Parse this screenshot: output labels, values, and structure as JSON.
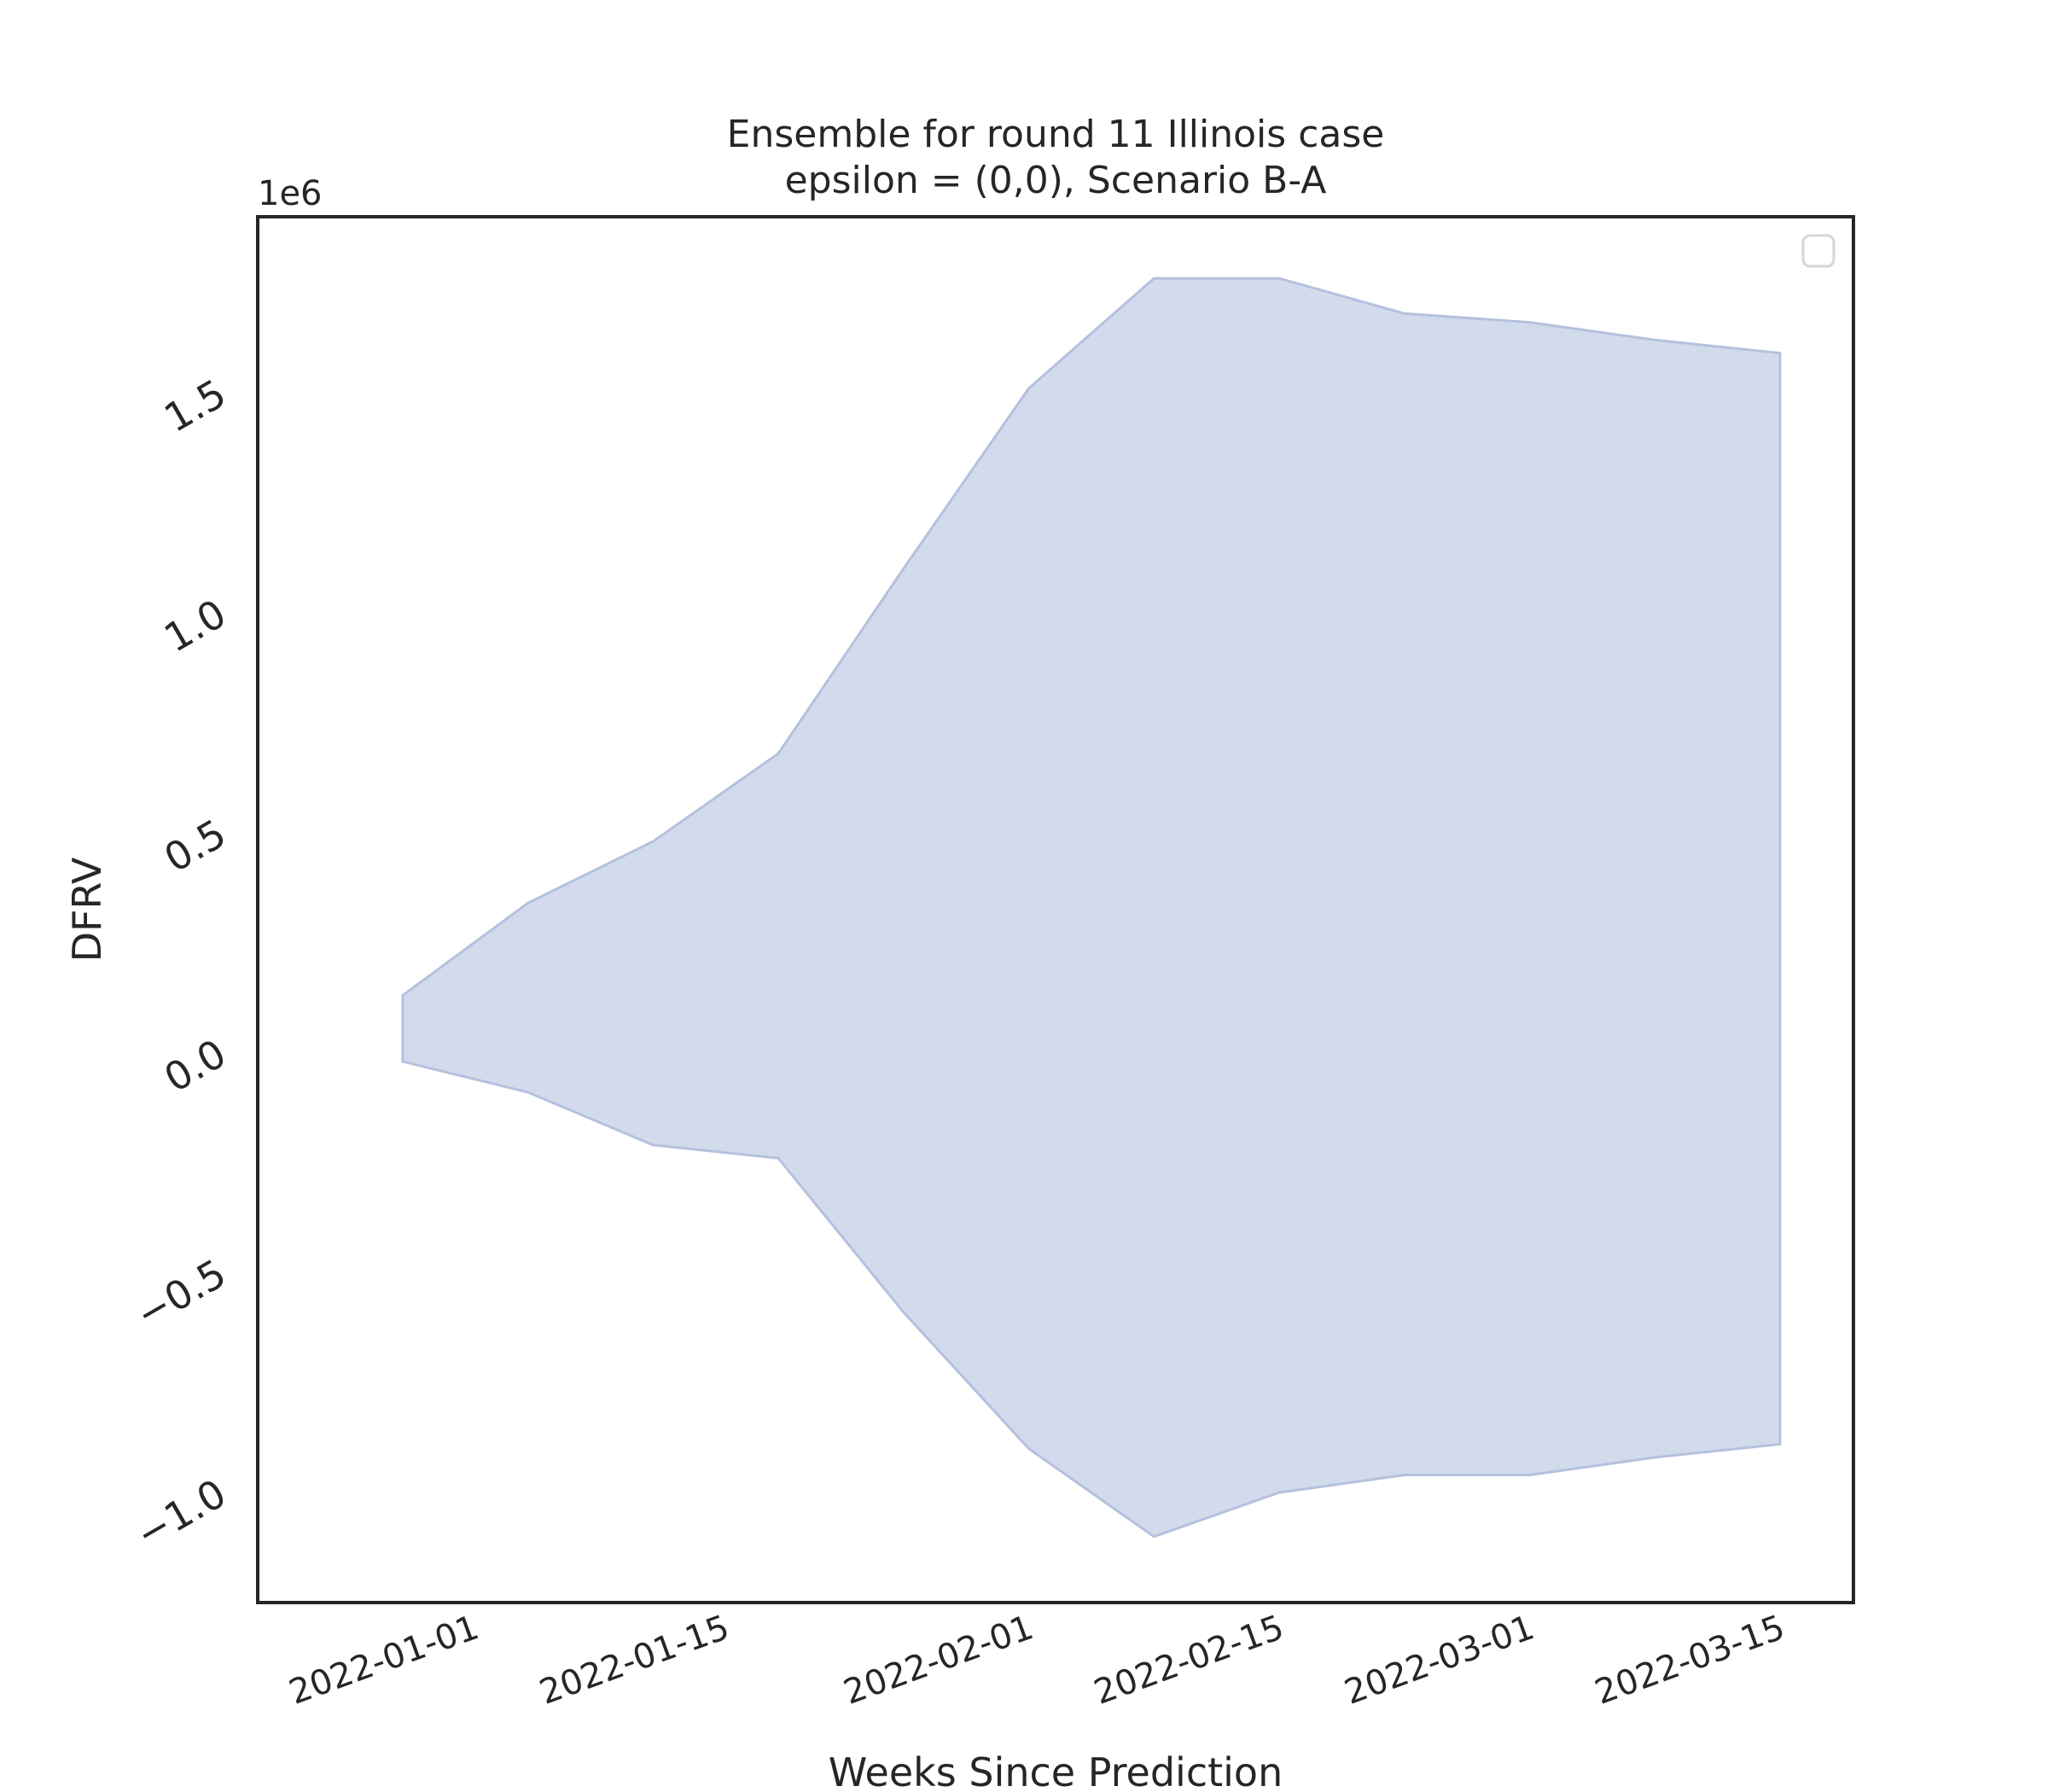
{
  "chart_data": {
    "type": "area",
    "title": "Ensemble for round 11 Illinois case",
    "subtitle": "epsilon = (0,0), Scenario B-A",
    "xlabel": "Weeks Since Prediction",
    "ylabel": "DFRV",
    "y_offset_label": "1e6",
    "x_tick_labels": [
      "2022-01-01",
      "2022-01-15",
      "2022-02-01",
      "2022-02-15",
      "2022-03-01",
      "2022-03-15"
    ],
    "x_tick_dates": [
      "2022-01-01",
      "2022-01-15",
      "2022-02-01",
      "2022-02-15",
      "2022-03-01",
      "2022-03-15"
    ],
    "y_tick_labels": [
      "−1.0",
      "−0.5",
      "0.0",
      "0.5",
      "1.0",
      "1.5"
    ],
    "y_tick_values": [
      -1.0,
      -0.5,
      0.0,
      0.5,
      1.0,
      1.5
    ],
    "xlim": [
      "2021-12-24",
      "2022-03-15"
    ],
    "ylim": [
      -1.25,
      1.9
    ],
    "grid": false,
    "legend": "top-right (empty)",
    "fill_color": "#d2dbec",
    "edge_color": "#b4c1de",
    "x": [
      "2021-12-28",
      "2022-01-04",
      "2022-01-11",
      "2022-01-18",
      "2022-01-25",
      "2022-02-01",
      "2022-02-08",
      "2022-02-15",
      "2022-02-22",
      "2022-03-01",
      "2022-03-08",
      "2022-03-15"
    ],
    "upper": [
      0.13,
      0.34,
      0.48,
      0.68,
      1.1,
      1.51,
      1.76,
      1.76,
      1.68,
      1.66,
      1.62,
      1.59
    ],
    "lower": [
      -0.02,
      -0.09,
      -0.21,
      -0.24,
      -0.59,
      -0.9,
      -1.1,
      -1.0,
      -0.96,
      -0.96,
      -0.92,
      -0.89
    ]
  }
}
